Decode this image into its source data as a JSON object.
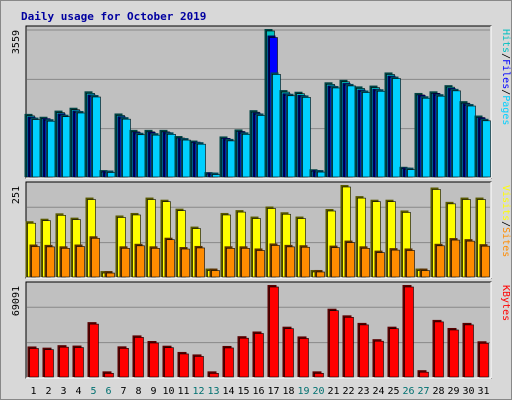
{
  "chart_data": {
    "type": "bar",
    "title": "Daily usage for October 2019",
    "days": [
      "1",
      "2",
      "3",
      "4",
      "5",
      "6",
      "7",
      "8",
      "9",
      "10",
      "11",
      "12",
      "13",
      "14",
      "15",
      "16",
      "17",
      "18",
      "19",
      "20",
      "21",
      "22",
      "23",
      "24",
      "25",
      "26",
      "27",
      "28",
      "29",
      "30",
      "31"
    ],
    "weekend_days": [
      "5",
      "6",
      "12",
      "13",
      "19",
      "20",
      "26",
      "27"
    ],
    "colors": {
      "hits": "#00c0c0",
      "files": "#0000ff",
      "pages": "#00d0ff",
      "sites": "#ff8c00",
      "visits": "#ffff00",
      "kbytes": "#ff0000",
      "plot_bg": "#c0c0c0",
      "title_text": "#0000a0",
      "weekend_text": "#007070"
    },
    "panels": [
      {
        "id": "hits-files-pages",
        "max_label": "3559",
        "max": 3559,
        "legend": [
          {
            "key": "pages",
            "text": "Pages"
          },
          {
            "key": "sep",
            "text": "/"
          },
          {
            "key": "files",
            "text": "Files"
          },
          {
            "key": "sep",
            "text": "/"
          },
          {
            "key": "hits",
            "text": "Hits"
          }
        ],
        "series": [
          {
            "name": "Hits",
            "key": "hits",
            "values": [
              1490,
              1420,
              1570,
              1640,
              2040,
              120,
              1500,
              1100,
              1100,
              1100,
              950,
              840,
              70,
              940,
              1110,
              1580,
              3559,
              2070,
              2030,
              140,
              2260,
              2320,
              2160,
              2180,
              2500,
              200,
              2000,
              2040,
              2190,
              1800,
              1450
            ]
          },
          {
            "name": "Files",
            "key": "files",
            "values": [
              1420,
              1380,
              1500,
              1570,
              1960,
              100,
              1430,
              1050,
              1050,
              1050,
              900,
              810,
              60,
              900,
              1060,
              1520,
              3400,
              1990,
              1950,
              120,
              2180,
              2240,
              2080,
              2100,
              2420,
              180,
              1950,
              1990,
              2120,
              1740,
              1400
            ]
          },
          {
            "name": "Pages",
            "key": "pages",
            "values": [
              1400,
              1360,
              1470,
              1560,
              1950,
              110,
              1410,
              1030,
              1020,
              1040,
              900,
              800,
              60,
              880,
              1040,
              1500,
              2500,
              1980,
              1940,
              120,
              2170,
              2220,
              2060,
              2090,
              2400,
              180,
              1920,
              1970,
              2100,
              1730,
              1370
            ]
          }
        ]
      },
      {
        "id": "sites-visits",
        "max_label": "251",
        "max": 251,
        "legend": [
          {
            "key": "sites",
            "text": "Sites"
          },
          {
            "key": "sep",
            "text": "/"
          },
          {
            "key": "visits",
            "text": "Visits"
          }
        ],
        "series": [
          {
            "name": "Visits",
            "key": "visits",
            "values": [
              150,
              157,
              172,
              160,
              216,
              11,
              166,
              173,
              216,
              210,
              185,
              135,
              18,
              173,
              181,
              163,
              191,
              175,
              163,
              14,
              184,
              251,
              220,
              210,
              210,
              180,
              18,
              244,
              204,
              216,
              216
            ]
          },
          {
            "name": "Sites",
            "key": "sites",
            "values": [
              85,
              84,
              80,
              85,
              108,
              11,
              80,
              87,
              80,
              104,
              78,
              81,
              18,
              80,
              80,
              74,
              88,
              84,
              83,
              14,
              82,
              96,
              80,
              68,
              75,
              74,
              18,
              87,
              103,
              100,
              86
            ]
          }
        ]
      },
      {
        "id": "kbytes",
        "max_label": "69091",
        "max": 69091,
        "legend": [
          {
            "key": "kbytes",
            "text": "KBytes"
          }
        ],
        "series": [
          {
            "name": "KBytes",
            "key": "kbytes",
            "values": [
              21900,
              21000,
              22900,
              22600,
              40600,
              2800,
              22000,
              30400,
              26100,
              22500,
              17700,
              15800,
              2800,
              22300,
              29800,
              33400,
              69091,
              37100,
              29600,
              2800,
              50900,
              45800,
              40000,
              27500,
              37100,
              69091,
              3700,
              42300,
              36100,
              40000,
              25900
            ]
          }
        ]
      }
    ]
  }
}
